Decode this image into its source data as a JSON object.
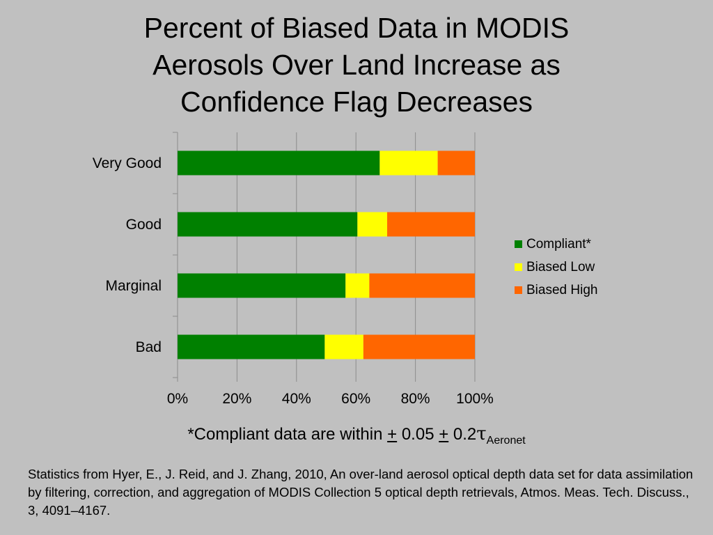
{
  "title_lines": [
    "Percent of Biased Data in MODIS",
    "Aerosols Over Land Increase as",
    "Confidence Flag Decreases"
  ],
  "chart_data": {
    "type": "bar",
    "orientation": "horizontal",
    "stacked": true,
    "percent_stacked": true,
    "categories": [
      "Very Good",
      "Good",
      "Marginal",
      "Bad"
    ],
    "series": [
      {
        "name": "Compliant*",
        "color": "#008000",
        "values": [
          68,
          60.5,
          56.5,
          49.5
        ]
      },
      {
        "name": "Biased Low",
        "color": "#ffff00",
        "values": [
          19.5,
          10,
          8,
          13
        ]
      },
      {
        "name": "Biased High",
        "color": "#ff6600",
        "values": [
          12.5,
          29.5,
          35.5,
          37.5
        ]
      }
    ],
    "x_ticks": [
      "0%",
      "20%",
      "40%",
      "60%",
      "80%",
      "100%"
    ],
    "xlim": [
      0,
      100
    ],
    "grid": "vertical",
    "legend_position": "right"
  },
  "footnote": {
    "prefix": "*Compliant data are within ",
    "pm1": "+",
    "mid": " 0.05 ",
    "pm2": "+",
    "coef": " 0.2",
    "tau": "τ",
    "sub": "Aeronet"
  },
  "source": "Statistics from Hyer, E., J. Reid, and J. Zhang, 2010, An over-land aerosol optical depth data set for data assimilation by filtering, correction, and aggregation of MODIS Collection 5 optical depth retrievals, Atmos. Meas. Tech. Discuss., 3, 4091–4167."
}
